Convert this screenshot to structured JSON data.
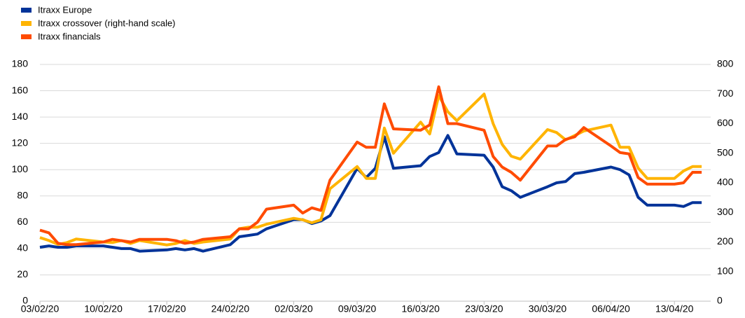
{
  "chart_data": {
    "type": "line",
    "x": [
      "2020-02-03",
      "2020-02-04",
      "2020-02-05",
      "2020-02-06",
      "2020-02-07",
      "2020-02-10",
      "2020-02-11",
      "2020-02-12",
      "2020-02-13",
      "2020-02-14",
      "2020-02-17",
      "2020-02-18",
      "2020-02-19",
      "2020-02-20",
      "2020-02-21",
      "2020-02-24",
      "2020-02-25",
      "2020-02-26",
      "2020-02-27",
      "2020-02-28",
      "2020-03-02",
      "2020-03-03",
      "2020-03-04",
      "2020-03-05",
      "2020-03-06",
      "2020-03-09",
      "2020-03-10",
      "2020-03-11",
      "2020-03-12",
      "2020-03-13",
      "2020-03-16",
      "2020-03-17",
      "2020-03-18",
      "2020-03-19",
      "2020-03-20",
      "2020-03-23",
      "2020-03-24",
      "2020-03-25",
      "2020-03-26",
      "2020-03-27",
      "2020-03-30",
      "2020-03-31",
      "2020-04-01",
      "2020-04-02",
      "2020-04-03",
      "2020-04-06",
      "2020-04-07",
      "2020-04-08",
      "2020-04-09",
      "2020-04-10",
      "2020-04-13",
      "2020-04-14",
      "2020-04-15",
      "2020-04-16"
    ],
    "series": [
      {
        "name": "Itraxx Europe",
        "color": "#003399",
        "values": [
          41,
          42,
          41,
          41,
          42,
          42,
          41,
          40,
          40,
          38,
          39,
          40,
          39,
          40,
          38,
          43,
          49,
          50,
          51,
          55,
          62,
          62,
          59,
          61,
          65,
          101,
          94,
          101,
          125,
          101,
          103,
          110,
          113,
          126,
          112,
          111,
          102,
          87,
          84,
          79,
          87,
          90,
          91,
          97,
          98,
          102,
          100,
          96,
          79,
          73,
          73,
          72,
          75,
          75
        ]
      },
      {
        "name": "Itraxx crossover (right-hand scale)",
        "color": "#ffb400",
        "axis": "y2",
        "values": [
          215,
          205,
          192,
          198,
          210,
          200,
          198,
          205,
          195,
          205,
          190,
          195,
          205,
          195,
          200,
          210,
          245,
          250,
          250,
          260,
          280,
          275,
          265,
          275,
          380,
          455,
          415,
          415,
          585,
          500,
          605,
          565,
          695,
          640,
          610,
          700,
          600,
          530,
          490,
          480,
          580,
          570,
          545,
          560,
          575,
          595,
          520,
          520,
          450,
          415,
          415,
          440,
          455,
          455
        ]
      },
      {
        "name": "Itraxx financials",
        "color": "#ff4b00",
        "values": [
          54,
          52,
          44,
          43,
          43,
          45,
          47,
          46,
          45,
          47,
          47,
          46,
          44,
          45,
          47,
          49,
          55,
          55,
          60,
          70,
          73,
          67,
          71,
          69,
          92,
          121,
          117,
          117,
          150,
          131,
          130,
          134,
          163,
          135,
          135,
          130,
          110,
          102,
          98,
          92,
          118,
          118,
          123,
          125,
          132,
          118,
          113,
          112,
          94,
          89,
          89,
          90,
          98,
          98
        ]
      }
    ],
    "xlim": [
      "2020-02-03",
      "2020-04-17"
    ],
    "xticks": [
      {
        "value": "2020-02-03",
        "label": "03/02/20"
      },
      {
        "value": "2020-02-10",
        "label": "10/02/20"
      },
      {
        "value": "2020-02-17",
        "label": "17/02/20"
      },
      {
        "value": "2020-02-24",
        "label": "24/02/20"
      },
      {
        "value": "2020-03-02",
        "label": "02/03/20"
      },
      {
        "value": "2020-03-09",
        "label": "09/03/20"
      },
      {
        "value": "2020-03-16",
        "label": "16/03/20"
      },
      {
        "value": "2020-03-23",
        "label": "23/03/20"
      },
      {
        "value": "2020-03-30",
        "label": "30/03/20"
      },
      {
        "value": "2020-04-06",
        "label": "06/04/20"
      },
      {
        "value": "2020-04-13",
        "label": "13/04/20"
      }
    ],
    "ylim": [
      0,
      180
    ],
    "yticks": [
      0,
      20,
      40,
      60,
      80,
      100,
      120,
      140,
      160,
      180
    ],
    "y2lim": [
      0,
      800
    ],
    "y2ticks": [
      0,
      100,
      200,
      300,
      400,
      500,
      600,
      700,
      800
    ],
    "grid": true
  }
}
